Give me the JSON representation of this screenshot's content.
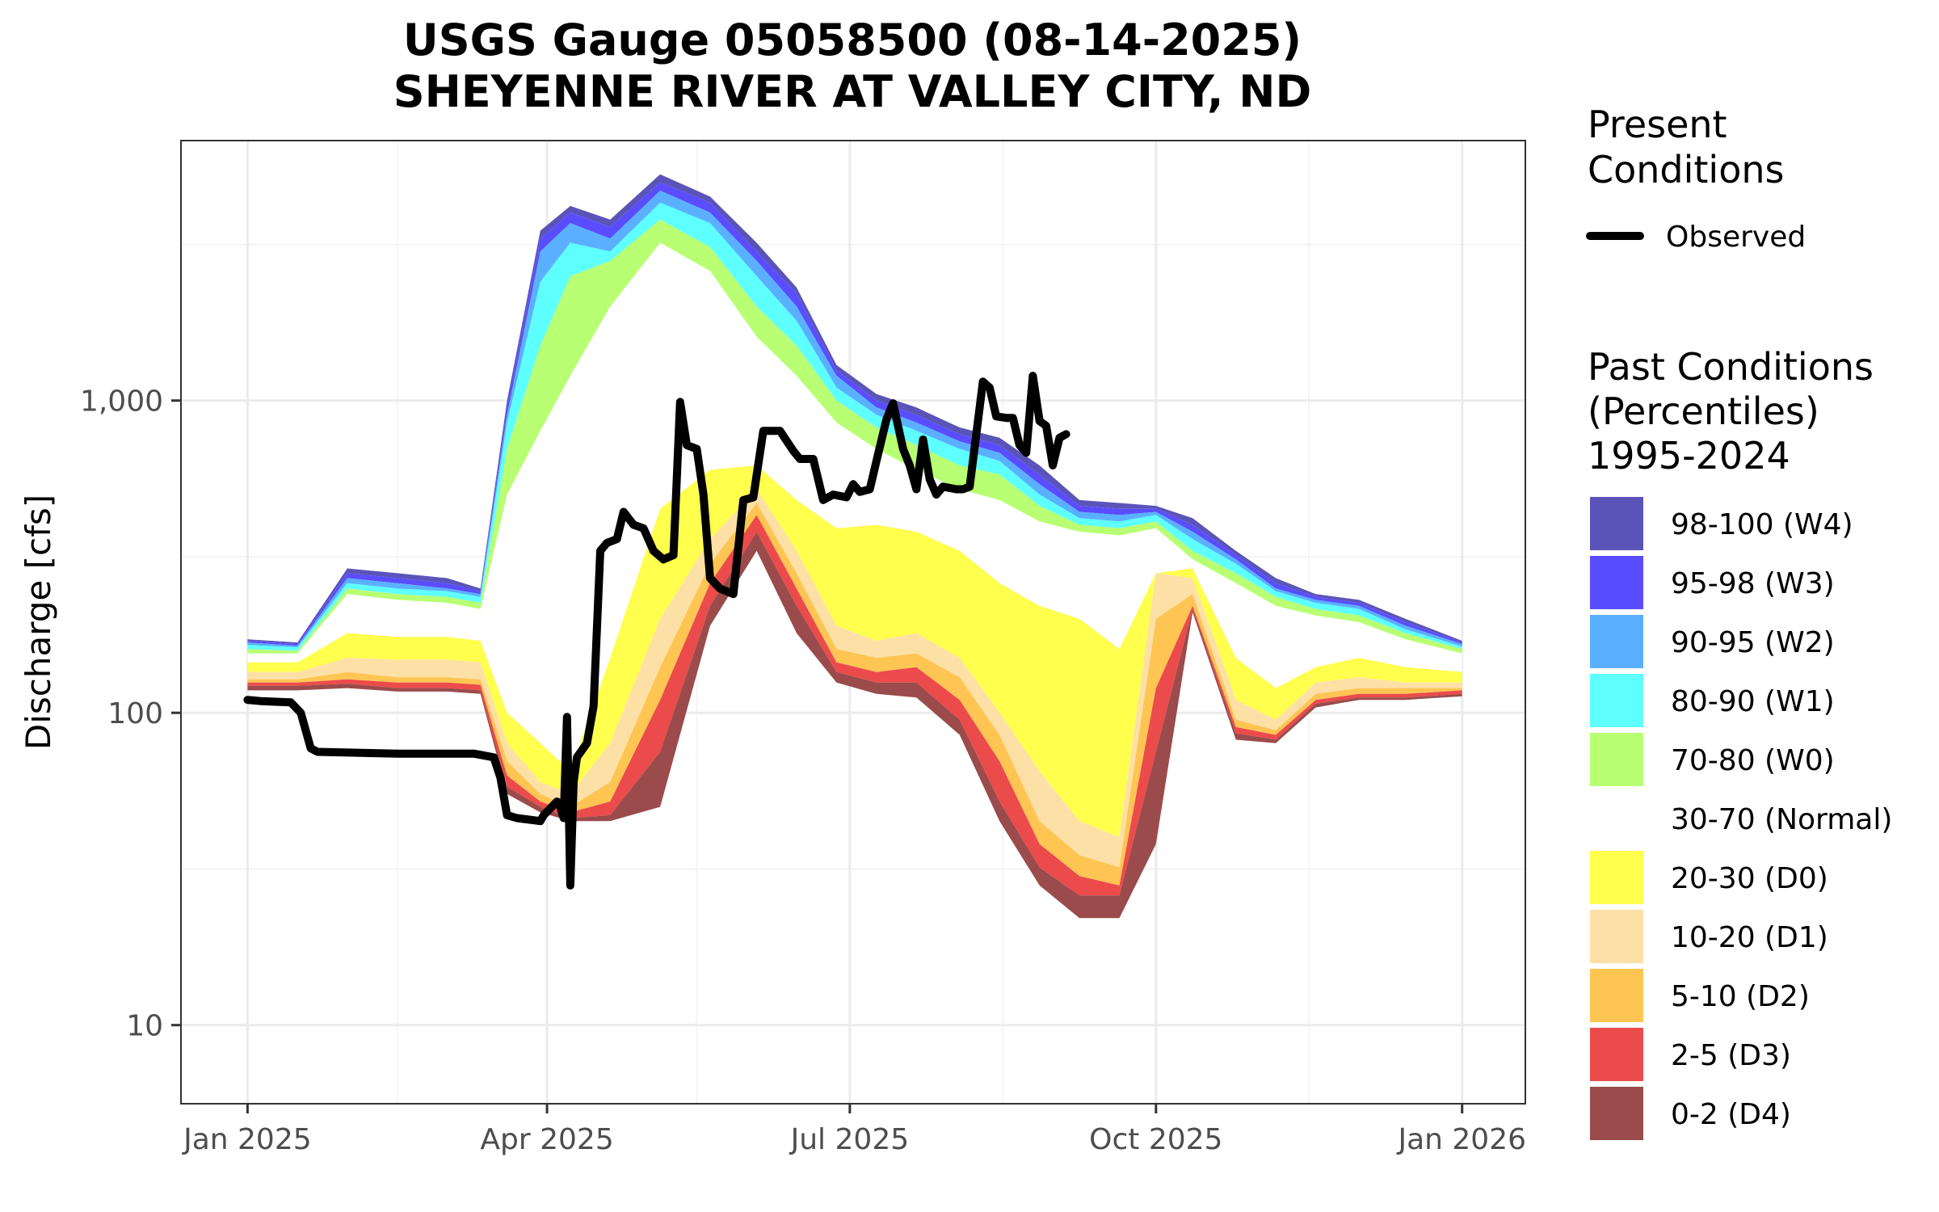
{
  "chart_data": {
    "type": "area",
    "title_line1": "USGS Gauge 05058500 (08-14-2025)",
    "title_line2": "SHEYENNE RIVER AT VALLEY CITY, ND",
    "ylabel": "Discharge [cfs]",
    "xlabel": "",
    "y_scale": "log",
    "ylim": [
      5.6,
      6800
    ],
    "xlim": [
      "2024-12-12",
      "2026-01-20"
    ],
    "y_ticks": [
      {
        "value": 10,
        "label": "10"
      },
      {
        "value": 100,
        "label": "100"
      },
      {
        "value": 1000,
        "label": "1,000"
      }
    ],
    "y_minor_ticks": [
      31.6,
      316,
      3162
    ],
    "x_ticks": [
      {
        "date": "2025-01-01",
        "label": "Jan 2025"
      },
      {
        "date": "2025-04-01",
        "label": "Apr 2025"
      },
      {
        "date": "2025-07-01",
        "label": "Jul 2025"
      },
      {
        "date": "2025-10-01",
        "label": "Oct 2025"
      },
      {
        "date": "2026-01-01",
        "label": "Jan 2026"
      }
    ],
    "x_minor_ticks": [
      "2025-02-15",
      "2025-05-16",
      "2025-08-16",
      "2025-11-16"
    ],
    "grid": true,
    "legend_placement": "right",
    "legend_present_title_line1": "Present",
    "legend_present_title_line2": "Conditions",
    "legend_past_title_line1": "Past Conditions",
    "legend_past_title_line2": "(Percentiles)",
    "legend_past_title_line3": "1995-2024",
    "observed_series": {
      "name": "Observed",
      "color": "#000000",
      "points": [
        [
          "2025-01-01",
          110
        ],
        [
          "2025-01-05",
          109
        ],
        [
          "2025-01-14",
          108
        ],
        [
          "2025-01-17",
          100
        ],
        [
          "2025-01-20",
          77
        ],
        [
          "2025-01-22",
          75
        ],
        [
          "2025-02-15",
          74
        ],
        [
          "2025-03-10",
          74
        ],
        [
          "2025-03-16",
          72
        ],
        [
          "2025-03-18",
          62
        ],
        [
          "2025-03-20",
          47
        ],
        [
          "2025-03-23",
          46
        ],
        [
          "2025-03-30",
          45
        ],
        [
          "2025-03-31",
          47
        ],
        [
          "2025-04-04",
          52
        ],
        [
          "2025-04-05",
          50
        ],
        [
          "2025-04-06",
          46
        ],
        [
          "2025-04-07",
          97
        ],
        [
          "2025-04-08",
          28
        ],
        [
          "2025-04-09",
          60
        ],
        [
          "2025-04-10",
          72
        ],
        [
          "2025-04-13",
          80
        ],
        [
          "2025-04-15",
          105
        ],
        [
          "2025-04-17",
          330
        ],
        [
          "2025-04-19",
          350
        ],
        [
          "2025-04-22",
          360
        ],
        [
          "2025-04-24",
          440
        ],
        [
          "2025-04-27",
          400
        ],
        [
          "2025-04-30",
          390
        ],
        [
          "2025-05-03",
          330
        ],
        [
          "2025-05-06",
          310
        ],
        [
          "2025-05-09",
          320
        ],
        [
          "2025-05-11",
          990
        ],
        [
          "2025-05-13",
          720
        ],
        [
          "2025-05-16",
          700
        ],
        [
          "2025-05-18",
          500
        ],
        [
          "2025-05-20",
          270
        ],
        [
          "2025-05-23",
          250
        ],
        [
          "2025-05-27",
          240
        ],
        [
          "2025-05-30",
          480
        ],
        [
          "2025-06-02",
          490
        ],
        [
          "2025-06-05",
          800
        ],
        [
          "2025-06-10",
          800
        ],
        [
          "2025-06-14",
          690
        ],
        [
          "2025-06-16",
          650
        ],
        [
          "2025-06-20",
          650
        ],
        [
          "2025-06-23",
          480
        ],
        [
          "2025-06-26",
          500
        ],
        [
          "2025-06-30",
          490
        ],
        [
          "2025-07-02",
          540
        ],
        [
          "2025-07-04",
          510
        ],
        [
          "2025-07-07",
          520
        ],
        [
          "2025-07-09",
          640
        ],
        [
          "2025-07-12",
          870
        ],
        [
          "2025-07-14",
          980
        ],
        [
          "2025-07-17",
          700
        ],
        [
          "2025-07-19",
          620
        ],
        [
          "2025-07-21",
          520
        ],
        [
          "2025-07-23",
          750
        ],
        [
          "2025-07-25",
          560
        ],
        [
          "2025-07-27",
          500
        ],
        [
          "2025-07-29",
          530
        ],
        [
          "2025-08-02",
          520
        ],
        [
          "2025-08-04",
          520
        ],
        [
          "2025-08-06",
          530
        ],
        [
          "2025-08-08",
          780
        ],
        [
          "2025-08-10",
          1150
        ],
        [
          "2025-08-12",
          1100
        ],
        [
          "2025-08-14",
          890
        ],
        [
          "2025-08-17",
          880
        ],
        [
          "2025-08-19",
          880
        ],
        [
          "2025-08-21",
          720
        ],
        [
          "2025-08-23",
          680
        ],
        [
          "2025-08-25",
          1200
        ],
        [
          "2025-08-27",
          860
        ],
        [
          "2025-08-29",
          830
        ],
        [
          "2025-08-31",
          620
        ],
        [
          "2025-09-02",
          760
        ],
        [
          "2025-09-04",
          780
        ]
      ]
    },
    "percentile_bands": [
      {
        "label": "98-100 (W4)",
        "color": "#5b54b8"
      },
      {
        "label": "95-98 (W3)",
        "color": "#5a4dff"
      },
      {
        "label": "90-95 (W2)",
        "color": "#5ab0ff"
      },
      {
        "label": "80-90 (W1)",
        "color": "#5effff"
      },
      {
        "label": "70-80 (W0)",
        "color": "#b8ff73"
      },
      {
        "label": "30-70 (Normal)",
        "color": "#ffffff"
      },
      {
        "label": "20-30 (D0)",
        "color": "#ffff4d"
      },
      {
        "label": "10-20 (D1)",
        "color": "#fde0a6"
      },
      {
        "label": "5-10 (D2)",
        "color": "#ffc553"
      },
      {
        "label": "2-5 (D3)",
        "color": "#ec4b4b"
      },
      {
        "label": "0-2 (D4)",
        "color": "#9b4b4b"
      }
    ],
    "percentile_boundaries": {
      "x": [
        "2025-01-01",
        "2025-01-16",
        "2025-01-31",
        "2025-02-15",
        "2025-03-02",
        "2025-03-12",
        "2025-03-20",
        "2025-03-30",
        "2025-04-08",
        "2025-04-20",
        "2025-05-05",
        "2025-05-20",
        "2025-06-03",
        "2025-06-15",
        "2025-06-27",
        "2025-07-09",
        "2025-07-21",
        "2025-08-03",
        "2025-08-15",
        "2025-08-27",
        "2025-09-08",
        "2025-09-20",
        "2025-10-01",
        "2025-10-12",
        "2025-10-25",
        "2025-11-06",
        "2025-11-18",
        "2025-12-01",
        "2025-12-15",
        "2026-01-01"
      ],
      "p100": [
        172,
        168,
        290,
        280,
        270,
        250,
        1000,
        3500,
        4200,
        3800,
        5300,
        4500,
        3200,
        2300,
        1300,
        1050,
        950,
        820,
        760,
        620,
        480,
        470,
        460,
        420,
        330,
        270,
        240,
        230,
        200,
        170
      ],
      "p98": [
        170,
        166,
        280,
        270,
        260,
        245,
        950,
        3300,
        4000,
        3600,
        5000,
        4300,
        3000,
        2200,
        1250,
        1000,
        900,
        780,
        720,
        580,
        460,
        450,
        450,
        400,
        320,
        260,
        235,
        225,
        195,
        168
      ],
      "p95": [
        168,
        164,
        270,
        260,
        250,
        240,
        900,
        3000,
        3700,
        3300,
        4700,
        4000,
        2800,
        2000,
        1200,
        950,
        850,
        740,
        680,
        540,
        440,
        430,
        440,
        380,
        310,
        250,
        230,
        220,
        190,
        166
      ],
      "p90": [
        165,
        162,
        260,
        250,
        245,
        235,
        850,
        2400,
        3200,
        3000,
        4300,
        3700,
        2500,
        1800,
        1100,
        900,
        800,
        700,
        640,
        500,
        420,
        410,
        430,
        360,
        300,
        245,
        225,
        215,
        185,
        163
      ],
      "p80": [
        160,
        158,
        250,
        240,
        235,
        225,
        700,
        1500,
        2500,
        2800,
        3800,
        3100,
        2000,
        1500,
        1000,
        820,
        720,
        620,
        580,
        460,
        400,
        390,
        410,
        330,
        280,
        235,
        215,
        205,
        180,
        160
      ],
      "p70": [
        155,
        155,
        240,
        230,
        225,
        215,
        500,
        800,
        1200,
        2000,
        3200,
        2600,
        1600,
        1200,
        850,
        700,
        600,
        520,
        480,
        410,
        380,
        370,
        390,
        310,
        260,
        220,
        205,
        195,
        172,
        155
      ],
      "p30": [
        145,
        145,
        180,
        175,
        175,
        170,
        100,
        80,
        65,
        150,
        450,
        600,
        620,
        480,
        390,
        400,
        380,
        330,
        260,
        220,
        200,
        160,
        280,
        290,
        150,
        120,
        140,
        150,
        140,
        135
      ],
      "p20": [
        135,
        135,
        150,
        148,
        148,
        145,
        80,
        60,
        55,
        80,
        200,
        360,
        520,
        330,
        190,
        170,
        180,
        150,
        100,
        65,
        45,
        40,
        280,
        270,
        110,
        95,
        125,
        130,
        125,
        125
      ],
      "p10": [
        128,
        128,
        135,
        130,
        130,
        128,
        70,
        55,
        50,
        60,
        140,
        300,
        470,
        280,
        160,
        150,
        155,
        130,
        85,
        45,
        35,
        32,
        200,
        240,
        95,
        88,
        115,
        120,
        120,
        120
      ],
      "p5": [
        125,
        125,
        128,
        125,
        125,
        123,
        63,
        52,
        48,
        52,
        110,
        260,
        430,
        250,
        145,
        135,
        140,
        110,
        70,
        38,
        30,
        28,
        120,
        220,
        90,
        85,
        110,
        115,
        115,
        118
      ],
      "p2": [
        122,
        122,
        124,
        120,
        120,
        118,
        58,
        50,
        46,
        47,
        75,
        220,
        380,
        220,
        135,
        125,
        125,
        95,
        52,
        32,
        26,
        26,
        75,
        215,
        86,
        82,
        107,
        112,
        112,
        115
      ],
      "p0": [
        118,
        118,
        120,
        117,
        117,
        115,
        55,
        48,
        45,
        45,
        50,
        190,
        330,
        180,
        125,
        115,
        112,
        85,
        45,
        28,
        22,
        22,
        38,
        210,
        82,
        80,
        104,
        110,
        110,
        113
      ]
    }
  }
}
